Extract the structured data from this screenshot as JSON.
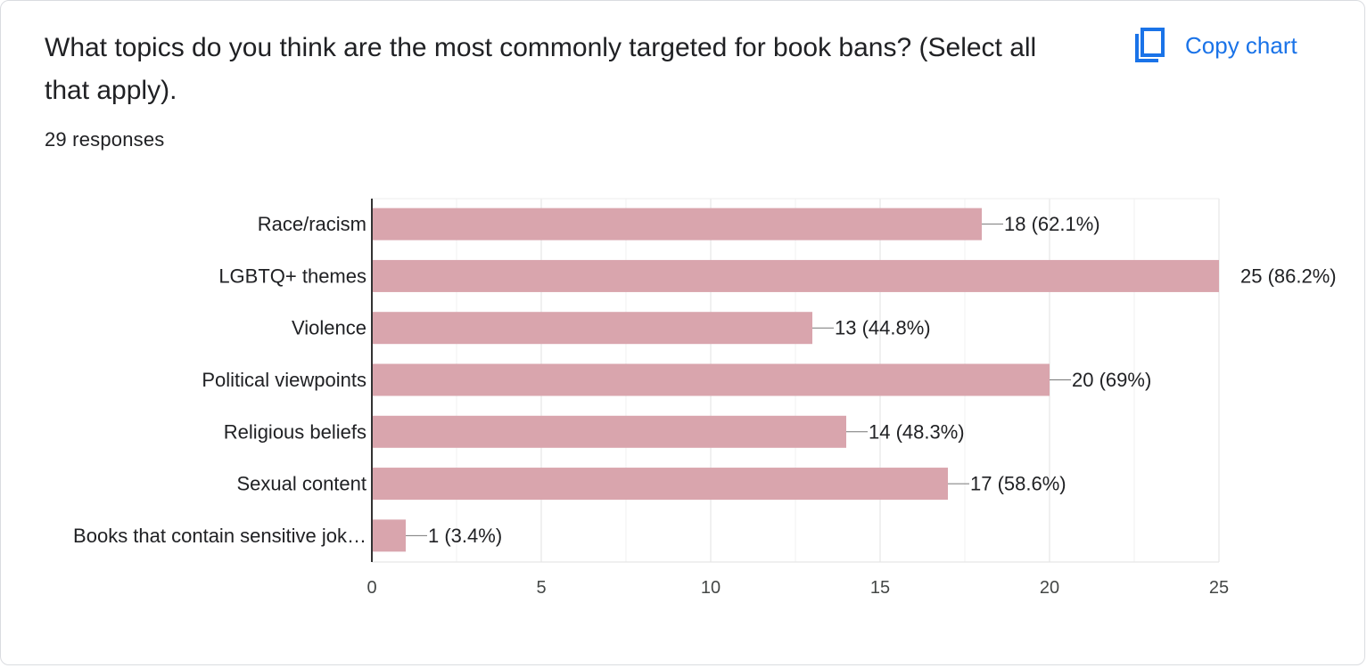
{
  "question": {
    "title": "What topics do you think are the most commonly targeted for book bans? (Select all that apply).",
    "responses": "29 responses"
  },
  "toolbar": {
    "copy_label": "Copy chart",
    "copy_icon": "copy-icon"
  },
  "colors": {
    "bar": "#d9a5ad",
    "accent": "#1a73e8",
    "axis": "#333333",
    "grid": "#e6e6e6"
  },
  "chart_data": {
    "type": "bar",
    "orientation": "horizontal",
    "categories": [
      "Race/racism",
      "LGBTQ+ themes",
      "Violence",
      "Political viewpoints",
      "Religious beliefs",
      "Sexual content",
      "Books that contain sensitive jok…"
    ],
    "values": [
      18,
      25,
      13,
      20,
      14,
      17,
      1
    ],
    "data_labels": [
      "18 (62.1%)",
      "25 (86.2%)",
      "13 (44.8%)",
      "20 (69%)",
      "14 (48.3%)",
      "17 (58.6%)",
      "1 (3.4%)"
    ],
    "xlim": [
      0,
      25
    ],
    "xticks": [
      0,
      5,
      10,
      15,
      20,
      25
    ],
    "grid": true,
    "legend": "none"
  }
}
